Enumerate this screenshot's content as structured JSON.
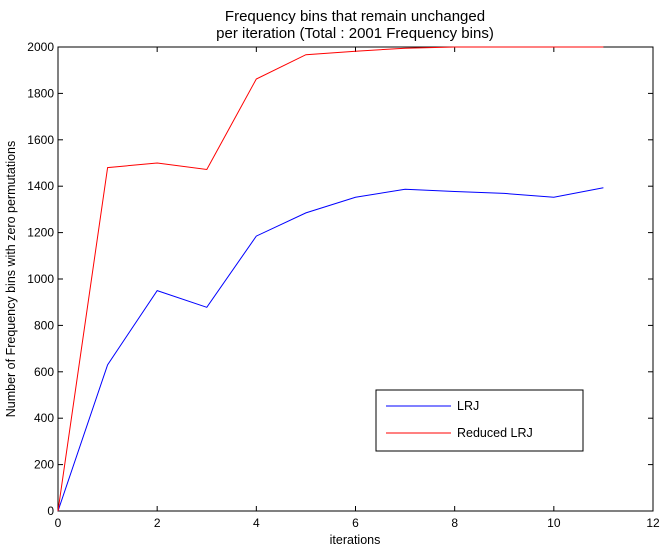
{
  "chart_data": {
    "type": "line",
    "title_line1": "Frequency bins that remain unchanged",
    "title_line2": "per iteration (Total : 2001 Frequency bins)",
    "xlabel": "iterations",
    "ylabel": "Number of Frequency bins with zero permutations",
    "xlim": [
      0,
      12
    ],
    "ylim": [
      0,
      2000
    ],
    "xticks": [
      0,
      2,
      4,
      6,
      8,
      10,
      12
    ],
    "yticks": [
      0,
      200,
      400,
      600,
      800,
      1000,
      1200,
      1400,
      1600,
      1800,
      2000
    ],
    "grid": false,
    "legend_position": "bottom-right",
    "series": [
      {
        "name": "LRJ",
        "color": "#0000ff",
        "x": [
          0,
          1,
          2,
          3,
          4,
          5,
          6,
          7,
          8,
          9,
          10,
          11
        ],
        "y": [
          0,
          630,
          950,
          878,
          1185,
          1285,
          1352,
          1387,
          1377,
          1369,
          1352,
          1393
        ]
      },
      {
        "name": "Reduced LRJ",
        "color": "#ff0000",
        "x": [
          0,
          1,
          2,
          3,
          4,
          5,
          6,
          7,
          8,
          9,
          10,
          11
        ],
        "y": [
          0,
          1480,
          1500,
          1472,
          1862,
          1967,
          1982,
          1995,
          2000,
          2000,
          2000,
          2000
        ]
      }
    ]
  }
}
